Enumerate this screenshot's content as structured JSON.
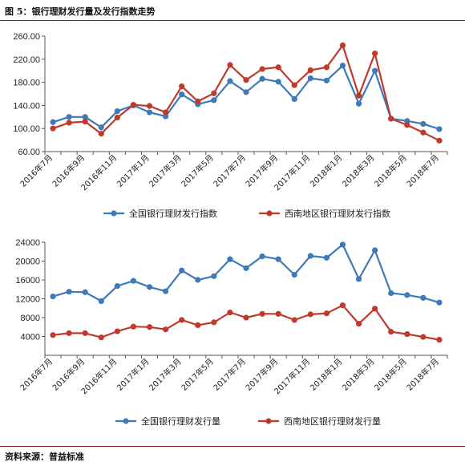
{
  "figure_title": "图 5：银行理财发行量及发行指数走势",
  "source": "资料来源：普益标准",
  "colors": {
    "national": "#3d7ab8",
    "southwest": "#c0392b",
    "rule": "#8b1a1a"
  },
  "chart_data": [
    {
      "type": "line",
      "categories": [
        "2016年7月",
        "2016年8月",
        "2016年9月",
        "2016年10月",
        "2016年11月",
        "2016年12月",
        "2017年1月",
        "2017年2月",
        "2017年3月",
        "2017年4月",
        "2017年5月",
        "2017年6月",
        "2017年7月",
        "2017年8月",
        "2017年9月",
        "2017年10月",
        "2017年11月",
        "2017年12月",
        "2018年1月",
        "2018年2月",
        "2018年3月",
        "2018年4月",
        "2018年5月",
        "2018年6月",
        "2018年7月"
      ],
      "tick_labels": [
        "2016年7月",
        "2016年9月",
        "2016年11月",
        "2017年1月",
        "2017年3月",
        "2017年5月",
        "2017年7月",
        "2017年9月",
        "2017年11月",
        "2018年1月",
        "2018年3月",
        "2018年5月",
        "2018年7月"
      ],
      "y_ticks": [
        "60.00",
        "100.00",
        "140.00",
        "180.00",
        "220.00",
        "260.00"
      ],
      "ylim": [
        60,
        260
      ],
      "y_step": 40,
      "legend_position": "bottom",
      "series": [
        {
          "name": "全国银行理财发行指数",
          "color": "#3d7ab8",
          "values": [
            111,
            120,
            120,
            102,
            130,
            140,
            128,
            121,
            159,
            142,
            149,
            182,
            163,
            186,
            181,
            151,
            187,
            183,
            209,
            143,
            200,
            117,
            113,
            108,
            99
          ]
        },
        {
          "name": "西南地区银行理财发行指数",
          "color": "#c0392b",
          "values": [
            100,
            110,
            112,
            91,
            119,
            141,
            139,
            128,
            173,
            147,
            161,
            210,
            184,
            203,
            206,
            175,
            201,
            206,
            244,
            157,
            230,
            117,
            106,
            93,
            79
          ]
        }
      ]
    },
    {
      "type": "line",
      "categories": [
        "2016年7月",
        "2016年8月",
        "2016年9月",
        "2016年10月",
        "2016年11月",
        "2016年12月",
        "2017年1月",
        "2017年2月",
        "2017年3月",
        "2017年4月",
        "2017年5月",
        "2017年6月",
        "2017年7月",
        "2017年8月",
        "2017年9月",
        "2017年10月",
        "2017年11月",
        "2017年12月",
        "2018年1月",
        "2018年2月",
        "2018年3月",
        "2018年4月",
        "2018年5月",
        "2018年6月",
        "2018年7月"
      ],
      "tick_labels": [
        "2016年7月",
        "2016年9月",
        "2016年11月",
        "2017年1月",
        "2017年3月",
        "2017年5月",
        "2017年7月",
        "2017年9月",
        "2017年11月",
        "2018年1月",
        "2018年3月",
        "2018年5月",
        "2018年7月"
      ],
      "y_ticks": [
        "4000",
        "8000",
        "12000",
        "16000",
        "20000",
        "24000"
      ],
      "ylim": [
        0,
        24000
      ],
      "y_step": 4000,
      "legend_position": "bottom",
      "series": [
        {
          "name": "全国银行理财发行量",
          "color": "#3d7ab8",
          "values": [
            12500,
            13500,
            13400,
            11500,
            14700,
            15800,
            14500,
            13600,
            18000,
            16000,
            16800,
            20400,
            18500,
            21000,
            20400,
            17100,
            21100,
            20700,
            23500,
            16200,
            22300,
            13200,
            12800,
            12200,
            11200
          ]
        },
        {
          "name": "西南地区银行理财发行量",
          "color": "#c0392b",
          "values": [
            4300,
            4700,
            4700,
            3800,
            5100,
            6100,
            6000,
            5500,
            7500,
            6400,
            7000,
            9100,
            8000,
            8800,
            8800,
            7500,
            8700,
            8900,
            10600,
            6700,
            9900,
            5000,
            4500,
            3900,
            3300
          ]
        }
      ]
    }
  ]
}
